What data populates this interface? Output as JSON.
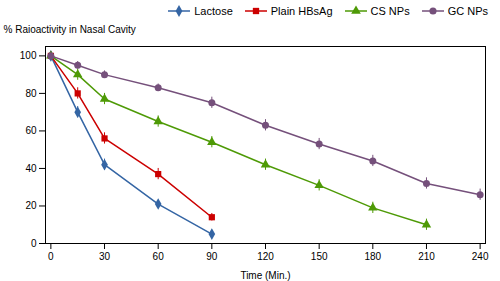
{
  "chart_data": {
    "type": "line",
    "x": [
      0,
      15,
      30,
      60,
      90,
      120,
      150,
      180,
      210,
      240
    ],
    "series": [
      {
        "name": "Lactose",
        "color": "#3465a4",
        "marker": "diamond",
        "values": [
          100,
          70,
          42,
          21,
          5,
          null,
          null,
          null,
          null,
          null
        ],
        "errors": [
          2,
          3,
          3,
          2,
          2,
          null,
          null,
          null,
          null,
          null
        ]
      },
      {
        "name": "Plain HBsAg",
        "color": "#cc0000",
        "marker": "square",
        "values": [
          100,
          80,
          56,
          37,
          14,
          null,
          null,
          null,
          null,
          null
        ],
        "errors": [
          2,
          3,
          3,
          3,
          2,
          null,
          null,
          null,
          null,
          null
        ]
      },
      {
        "name": "CS NPs",
        "color": "#4e9a06",
        "marker": "triangle",
        "values": [
          100,
          90,
          77,
          65,
          54,
          42,
          31,
          19,
          10,
          null
        ],
        "errors": [
          2,
          3,
          3,
          3,
          3,
          3,
          3,
          3,
          3,
          null
        ]
      },
      {
        "name": "GC NPs",
        "color": "#75507b",
        "marker": "circle",
        "values": [
          100,
          95,
          90,
          83,
          75,
          63,
          53,
          44,
          32,
          26
        ],
        "errors": [
          2,
          2,
          2,
          2,
          3,
          3,
          3,
          3,
          3,
          3
        ]
      }
    ],
    "xlabel": "Time (Min.)",
    "ylabel": "% Raioactivity in Nasal Cavity",
    "xlim": [
      -3,
      243
    ],
    "ylim": [
      0,
      105
    ],
    "xticks": [
      0,
      30,
      60,
      90,
      120,
      150,
      180,
      210,
      240
    ],
    "yticks": [
      0,
      20,
      40,
      60,
      80,
      100
    ],
    "legend": "upper right"
  }
}
